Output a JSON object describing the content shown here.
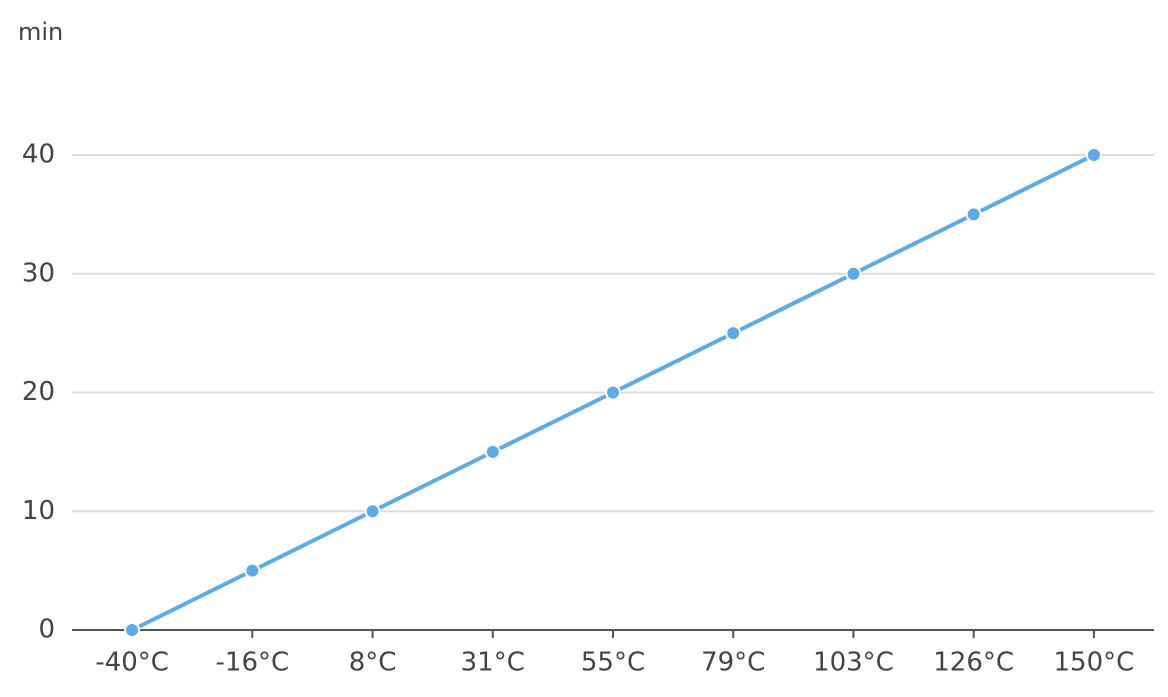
{
  "chart_data": {
    "type": "line",
    "y_label": "min",
    "categories": [
      "-40°C",
      "-16°C",
      "8°C",
      "31°C",
      "55°C",
      "79°C",
      "103°C",
      "126°C",
      "150°C"
    ],
    "series": [
      {
        "color": "#5aabe8",
        "values": [
          0,
          5,
          10,
          15,
          20,
          25,
          30,
          35,
          40
        ]
      }
    ],
    "ylim": [
      0,
      40
    ],
    "yticks": [
      0,
      10,
      20,
      30,
      40
    ],
    "grid": true
  }
}
